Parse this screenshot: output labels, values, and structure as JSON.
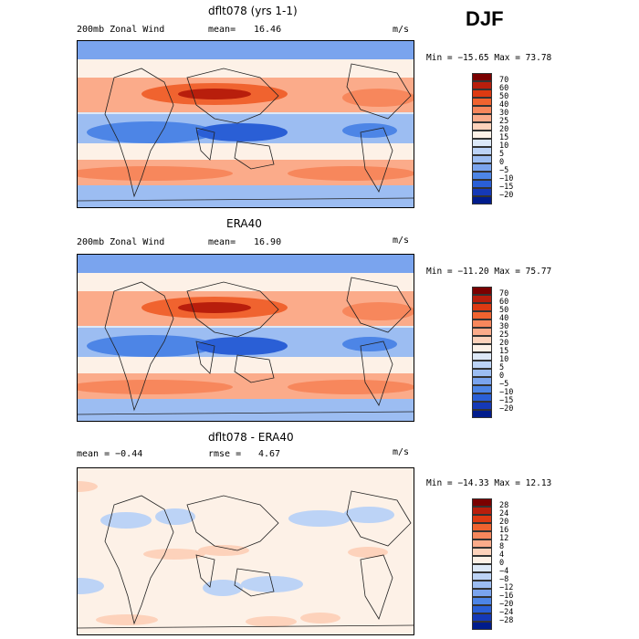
{
  "season": "DJF",
  "panels": [
    {
      "title": "dflt078 (yrs 1-1)",
      "left_label": "200mb Zonal Wind",
      "stat_label": "mean=",
      "stat_value": "16.46",
      "units": "m/s",
      "minmax": "Min = −15.65 Max =   73.78",
      "colorbar": {
        "levels": [
          "70",
          "60",
          "50",
          "40",
          "30",
          "25",
          "20",
          "15",
          "10",
          "5",
          "0",
          "−5",
          "−10",
          "−15",
          "−20"
        ],
        "colors": [
          "#7a0000",
          "#b81e0c",
          "#dd3a12",
          "#f0632f",
          "#f7875c",
          "#fbab8a",
          "#fdd2bb",
          "#fdf1e7",
          "#dce8f7",
          "#bcd3f6",
          "#9cbdf2",
          "#7aa4ee",
          "#4d85e6",
          "#2a5fd6",
          "#1539b7",
          "#001c8c"
        ]
      },
      "map_pattern": "full"
    },
    {
      "title": "ERA40",
      "left_label": "200mb Zonal Wind",
      "stat_label": "mean=",
      "stat_value": "16.90",
      "units": "m/s",
      "minmax": "Min = −11.20 Max =   75.77",
      "colorbar": {
        "levels": [
          "70",
          "60",
          "50",
          "40",
          "30",
          "25",
          "20",
          "15",
          "10",
          "5",
          "0",
          "−5",
          "−10",
          "−15",
          "−20"
        ],
        "colors": [
          "#7a0000",
          "#b81e0c",
          "#dd3a12",
          "#f0632f",
          "#f7875c",
          "#fbab8a",
          "#fdd2bb",
          "#fdf1e7",
          "#dce8f7",
          "#bcd3f6",
          "#9cbdf2",
          "#7aa4ee",
          "#4d85e6",
          "#2a5fd6",
          "#1539b7",
          "#001c8c"
        ]
      },
      "map_pattern": "full"
    },
    {
      "title": "dflt078 - ERA40",
      "left_label": "mean =   −0.44",
      "stat_label": "rmse =",
      "stat_value": "4.67",
      "units": "m/s",
      "minmax": "Min = −14.33 Max =   12.13",
      "colorbar": {
        "levels": [
          "28",
          "24",
          "20",
          "16",
          "12",
          "8",
          "4",
          "0",
          "−4",
          "−8",
          "−12",
          "−16",
          "−20",
          "−24",
          "−28"
        ],
        "colors": [
          "#7a0000",
          "#b81e0c",
          "#dd3a12",
          "#f0632f",
          "#f7875c",
          "#fbab8a",
          "#fdd2bb",
          "#fdf1e7",
          "#dce8f7",
          "#bcd3f6",
          "#9cbdf2",
          "#7aa4ee",
          "#4d85e6",
          "#2a5fd6",
          "#1539b7",
          "#001c8c"
        ]
      },
      "map_pattern": "diff"
    }
  ],
  "chart_data": [
    {
      "type": "heatmap",
      "title": "dflt078 (yrs 1-1)",
      "variable": "200mb Zonal Wind",
      "units": "m/s",
      "mean": 16.46,
      "min": -15.65,
      "max": 73.78,
      "contour_levels": [
        -20,
        -15,
        -10,
        -5,
        0,
        5,
        10,
        15,
        20,
        25,
        30,
        40,
        50,
        60,
        70
      ]
    },
    {
      "type": "heatmap",
      "title": "ERA40",
      "variable": "200mb Zonal Wind",
      "units": "m/s",
      "mean": 16.9,
      "min": -11.2,
      "max": 75.77,
      "contour_levels": [
        -20,
        -15,
        -10,
        -5,
        0,
        5,
        10,
        15,
        20,
        25,
        30,
        40,
        50,
        60,
        70
      ]
    },
    {
      "type": "heatmap",
      "title": "dflt078 - ERA40",
      "units": "m/s",
      "mean": -0.44,
      "rmse": 4.67,
      "min": -14.33,
      "max": 12.13,
      "contour_levels": [
        -28,
        -24,
        -20,
        -16,
        -12,
        -8,
        -4,
        0,
        4,
        8,
        12,
        16,
        20,
        24,
        28
      ]
    }
  ]
}
